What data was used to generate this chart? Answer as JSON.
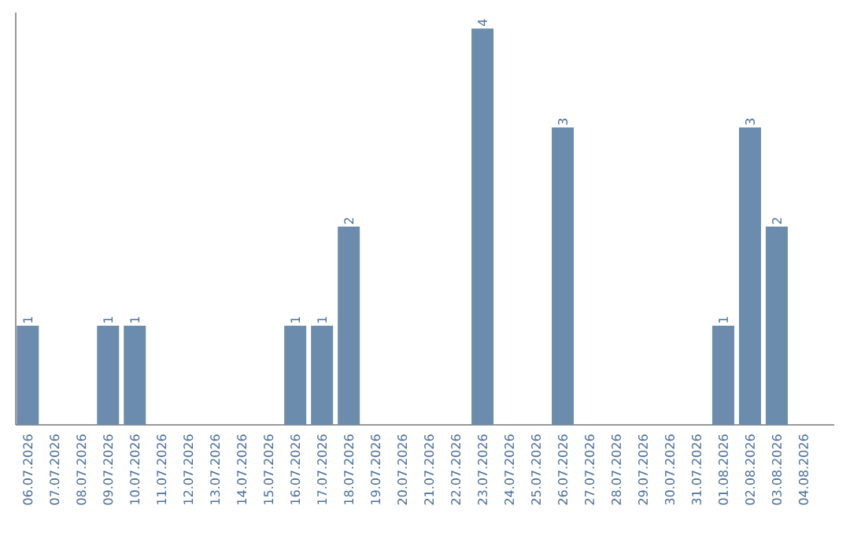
{
  "chart_data": {
    "type": "bar",
    "categories": [
      "06.07.2026",
      "07.07.2026",
      "08.07.2026",
      "09.07.2026",
      "10.07.2026",
      "11.07.2026",
      "12.07.2026",
      "13.07.2026",
      "14.07.2026",
      "15.07.2026",
      "16.07.2026",
      "17.07.2026",
      "18.07.2026",
      "19.07.2026",
      "20.07.2026",
      "21.07.2026",
      "22.07.2026",
      "23.07.2026",
      "24.07.2026",
      "25.07.2026",
      "26.07.2026",
      "27.07.2026",
      "28.07.2026",
      "29.07.2026",
      "30.07.2026",
      "31.07.2026",
      "01.08.2026",
      "02.08.2026",
      "03.08.2026",
      "04.08.2026"
    ],
    "values": [
      1,
      0,
      0,
      1,
      1,
      0,
      0,
      0,
      0,
      0,
      1,
      1,
      2,
      0,
      0,
      0,
      0,
      4,
      0,
      0,
      3,
      0,
      0,
      0,
      0,
      0,
      1,
      3,
      2,
      0
    ],
    "value_labels": [
      "1",
      null,
      null,
      "1",
      "1",
      null,
      null,
      null,
      null,
      null,
      "1",
      "1",
      "2",
      null,
      null,
      null,
      null,
      "4",
      null,
      null,
      "3",
      null,
      null,
      null,
      null,
      null,
      "1",
      "3",
      "2",
      null
    ],
    "color": "#6b8cad"
  }
}
